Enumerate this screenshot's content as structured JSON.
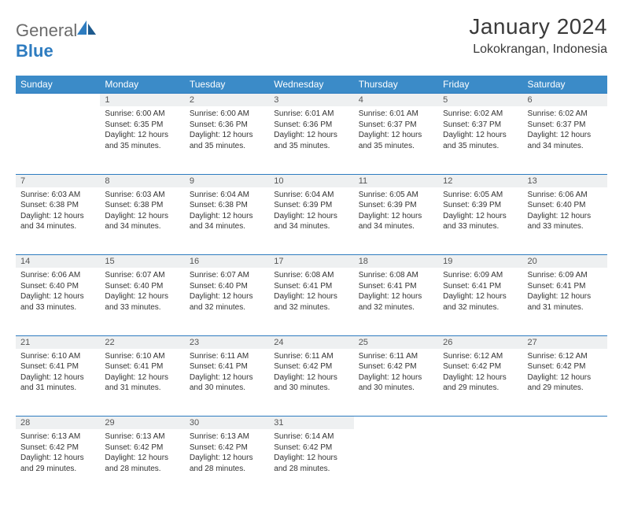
{
  "brand": {
    "part1": "General",
    "part2": "Blue"
  },
  "title": "January 2024",
  "location": "Lokokrangan, Indonesia",
  "colors": {
    "header_bg": "#3b8bc8",
    "header_text": "#ffffff",
    "daynum_bg": "#eef0f1",
    "border": "#2e7cc0",
    "body_text": "#333333",
    "title_text": "#3a3a3a",
    "logo_gray": "#6b6b6b",
    "logo_blue": "#2e7cc0"
  },
  "weekdays": [
    "Sunday",
    "Monday",
    "Tuesday",
    "Wednesday",
    "Thursday",
    "Friday",
    "Saturday"
  ],
  "weeks": [
    {
      "nums": [
        "",
        "1",
        "2",
        "3",
        "4",
        "5",
        "6"
      ],
      "cells": [
        null,
        {
          "sr": "6:00 AM",
          "ss": "6:35 PM",
          "dl": "12 hours and 35 minutes."
        },
        {
          "sr": "6:00 AM",
          "ss": "6:36 PM",
          "dl": "12 hours and 35 minutes."
        },
        {
          "sr": "6:01 AM",
          "ss": "6:36 PM",
          "dl": "12 hours and 35 minutes."
        },
        {
          "sr": "6:01 AM",
          "ss": "6:37 PM",
          "dl": "12 hours and 35 minutes."
        },
        {
          "sr": "6:02 AM",
          "ss": "6:37 PM",
          "dl": "12 hours and 35 minutes."
        },
        {
          "sr": "6:02 AM",
          "ss": "6:37 PM",
          "dl": "12 hours and 34 minutes."
        }
      ]
    },
    {
      "nums": [
        "7",
        "8",
        "9",
        "10",
        "11",
        "12",
        "13"
      ],
      "cells": [
        {
          "sr": "6:03 AM",
          "ss": "6:38 PM",
          "dl": "12 hours and 34 minutes."
        },
        {
          "sr": "6:03 AM",
          "ss": "6:38 PM",
          "dl": "12 hours and 34 minutes."
        },
        {
          "sr": "6:04 AM",
          "ss": "6:38 PM",
          "dl": "12 hours and 34 minutes."
        },
        {
          "sr": "6:04 AM",
          "ss": "6:39 PM",
          "dl": "12 hours and 34 minutes."
        },
        {
          "sr": "6:05 AM",
          "ss": "6:39 PM",
          "dl": "12 hours and 34 minutes."
        },
        {
          "sr": "6:05 AM",
          "ss": "6:39 PM",
          "dl": "12 hours and 33 minutes."
        },
        {
          "sr": "6:06 AM",
          "ss": "6:40 PM",
          "dl": "12 hours and 33 minutes."
        }
      ]
    },
    {
      "nums": [
        "14",
        "15",
        "16",
        "17",
        "18",
        "19",
        "20"
      ],
      "cells": [
        {
          "sr": "6:06 AM",
          "ss": "6:40 PM",
          "dl": "12 hours and 33 minutes."
        },
        {
          "sr": "6:07 AM",
          "ss": "6:40 PM",
          "dl": "12 hours and 33 minutes."
        },
        {
          "sr": "6:07 AM",
          "ss": "6:40 PM",
          "dl": "12 hours and 32 minutes."
        },
        {
          "sr": "6:08 AM",
          "ss": "6:41 PM",
          "dl": "12 hours and 32 minutes."
        },
        {
          "sr": "6:08 AM",
          "ss": "6:41 PM",
          "dl": "12 hours and 32 minutes."
        },
        {
          "sr": "6:09 AM",
          "ss": "6:41 PM",
          "dl": "12 hours and 32 minutes."
        },
        {
          "sr": "6:09 AM",
          "ss": "6:41 PM",
          "dl": "12 hours and 31 minutes."
        }
      ]
    },
    {
      "nums": [
        "21",
        "22",
        "23",
        "24",
        "25",
        "26",
        "27"
      ],
      "cells": [
        {
          "sr": "6:10 AM",
          "ss": "6:41 PM",
          "dl": "12 hours and 31 minutes."
        },
        {
          "sr": "6:10 AM",
          "ss": "6:41 PM",
          "dl": "12 hours and 31 minutes."
        },
        {
          "sr": "6:11 AM",
          "ss": "6:41 PM",
          "dl": "12 hours and 30 minutes."
        },
        {
          "sr": "6:11 AM",
          "ss": "6:42 PM",
          "dl": "12 hours and 30 minutes."
        },
        {
          "sr": "6:11 AM",
          "ss": "6:42 PM",
          "dl": "12 hours and 30 minutes."
        },
        {
          "sr": "6:12 AM",
          "ss": "6:42 PM",
          "dl": "12 hours and 29 minutes."
        },
        {
          "sr": "6:12 AM",
          "ss": "6:42 PM",
          "dl": "12 hours and 29 minutes."
        }
      ]
    },
    {
      "nums": [
        "28",
        "29",
        "30",
        "31",
        "",
        "",
        ""
      ],
      "cells": [
        {
          "sr": "6:13 AM",
          "ss": "6:42 PM",
          "dl": "12 hours and 29 minutes."
        },
        {
          "sr": "6:13 AM",
          "ss": "6:42 PM",
          "dl": "12 hours and 28 minutes."
        },
        {
          "sr": "6:13 AM",
          "ss": "6:42 PM",
          "dl": "12 hours and 28 minutes."
        },
        {
          "sr": "6:14 AM",
          "ss": "6:42 PM",
          "dl": "12 hours and 28 minutes."
        },
        null,
        null,
        null
      ]
    }
  ],
  "labels": {
    "sunrise": "Sunrise:",
    "sunset": "Sunset:",
    "daylight": "Daylight:"
  }
}
